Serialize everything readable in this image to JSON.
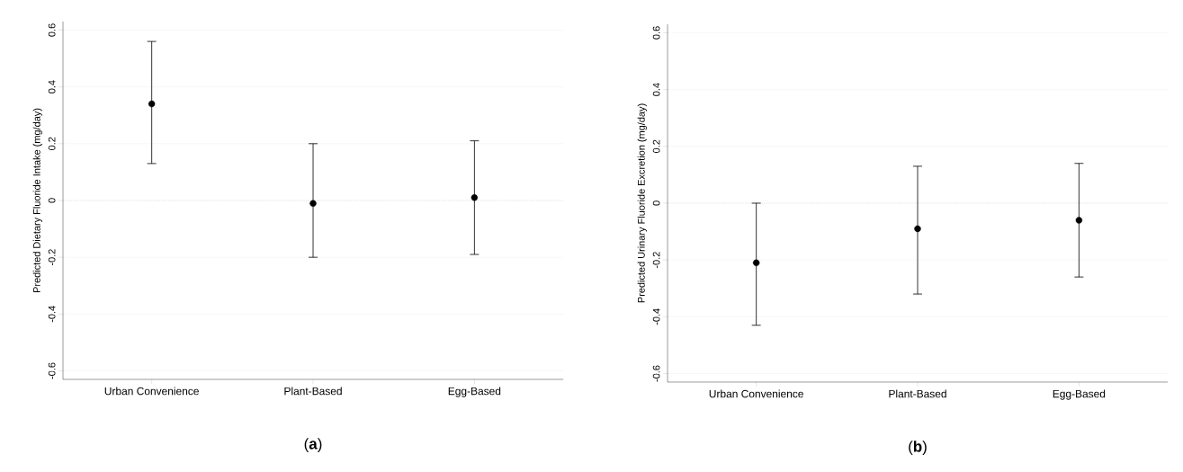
{
  "chart_data": [
    {
      "type": "scatter",
      "title": "(**a**)",
      "ylabel": "Predicted Dietary Fluoride Intake (mg/day)",
      "categories": [
        "Urban Convenience",
        "Plant-Based",
        "Egg-Based"
      ],
      "series": [
        {
          "color": "#000000",
          "values": [
            0.34,
            -0.01,
            0.01
          ],
          "errors": [
            [
              0.13,
              0.56
            ],
            [
              -0.2,
              0.2
            ],
            [
              -0.19,
              0.21
            ]
          ]
        }
      ],
      "ylim": [
        -0.63,
        0.63
      ],
      "yticks": [
        -0.6,
        -0.4,
        -0.2,
        0,
        0.2,
        0.4,
        0.6
      ],
      "grid": "y",
      "marker": "circle",
      "ref_lines": [
        {
          "axis": "y",
          "value": 0,
          "color": "#e06060",
          "line_style": "dotted"
        }
      ]
    },
    {
      "type": "scatter",
      "title": "(**b**)",
      "ylabel": "Predicted Urinary Fluoride Excretion (mg/day)",
      "categories": [
        "Urban Convenience",
        "Plant-Based",
        "Egg-Based"
      ],
      "series": [
        {
          "color": "#000000",
          "values": [
            -0.21,
            -0.09,
            -0.06
          ],
          "errors": [
            [
              -0.43,
              0
            ],
            [
              -0.32,
              0.13
            ],
            [
              -0.26,
              0.14
            ]
          ]
        }
      ],
      "ylim": [
        -0.63,
        0.63
      ],
      "yticks": [
        -0.6,
        -0.4,
        -0.2,
        0,
        0.2,
        0.4,
        0.6
      ],
      "grid": "y",
      "marker": "circle",
      "ref_lines": [
        {
          "axis": "y",
          "value": 0,
          "color": "#e06060",
          "line_style": "dotted"
        }
      ]
    }
  ]
}
